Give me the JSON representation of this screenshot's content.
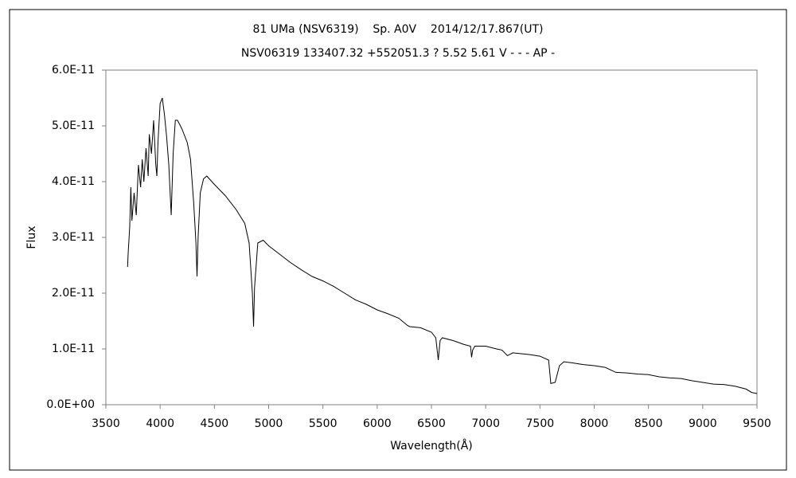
{
  "chart_data": {
    "type": "line",
    "title": "81 UMa (NSV6319)    Sp. A0V    2014/12/17.867(UT)",
    "subtitle": "NSV06319 133407.32 +552051.3 ? 5.52 5.61 V - - - AP -",
    "x_label": "Wavelength(Å)",
    "y_label": "Flux",
    "xlim": [
      3500,
      9500
    ],
    "xticks": [
      3500,
      4000,
      4500,
      5000,
      5500,
      6000,
      6500,
      7000,
      7500,
      8000,
      8500,
      9000,
      9500
    ],
    "ylim": [
      0,
      6e-11
    ],
    "yticks": [
      {
        "value": 0,
        "label": "0.0E+00"
      },
      {
        "value": 1e-11,
        "label": "1.0E-11"
      },
      {
        "value": 2e-11,
        "label": "2.0E-11"
      },
      {
        "value": 3e-11,
        "label": "3.0E-11"
      },
      {
        "value": 4e-11,
        "label": "4.0E-11"
      },
      {
        "value": 5e-11,
        "label": "5.0E-11"
      },
      {
        "value": 6e-11,
        "label": "6.0E-11"
      }
    ],
    "grid": false,
    "series": [
      {
        "color": "#000000",
        "x": [
          3700,
          3705,
          3720,
          3730,
          3740,
          3760,
          3780,
          3800,
          3820,
          3835,
          3850,
          3870,
          3890,
          3900,
          3920,
          3940,
          3960,
          3970,
          3980,
          4000,
          4020,
          4040,
          4060,
          4080,
          4102,
          4120,
          4140,
          4160,
          4200,
          4250,
          4280,
          4310,
          4330,
          4340,
          4350,
          4370,
          4400,
          4430,
          4500,
          4600,
          4700,
          4780,
          4820,
          4850,
          4861,
          4870,
          4900,
          4950,
          5000,
          5100,
          5200,
          5300,
          5400,
          5500,
          5600,
          5700,
          5800,
          5900,
          6000,
          6100,
          6200,
          6280,
          6300,
          6400,
          6500,
          6540,
          6563,
          6580,
          6600,
          6700,
          6800,
          6860,
          6870,
          6880,
          6900,
          7000,
          7100,
          7150,
          7200,
          7250,
          7300,
          7400,
          7500,
          7580,
          7600,
          7640,
          7680,
          7720,
          7800,
          7900,
          8000,
          8100,
          8200,
          8300,
          8400,
          8500,
          8600,
          8700,
          8800,
          8900,
          9000,
          9100,
          9200,
          9300,
          9400,
          9450,
          9500
        ],
        "values": [
          2.47e-11,
          2.7e-11,
          3.2e-11,
          3.9e-11,
          3.3e-11,
          3.8e-11,
          3.4e-11,
          4.3e-11,
          3.9e-11,
          4.4e-11,
          4e-11,
          4.6e-11,
          4.1e-11,
          4.85e-11,
          4.5e-11,
          5.1e-11,
          4.3e-11,
          4.1e-11,
          4.7e-11,
          5.4e-11,
          5.5e-11,
          5.2e-11,
          4.8e-11,
          4.3e-11,
          3.4e-11,
          4.5e-11,
          5.1e-11,
          5.1e-11,
          4.95e-11,
          4.7e-11,
          4.4e-11,
          3.6e-11,
          2.9e-11,
          2.3e-11,
          3e-11,
          3.8e-11,
          4.05e-11,
          4.1e-11,
          3.95e-11,
          3.75e-11,
          3.5e-11,
          3.25e-11,
          2.9e-11,
          2e-11,
          1.4e-11,
          2.1e-11,
          2.9e-11,
          2.95e-11,
          2.85e-11,
          2.7e-11,
          2.55e-11,
          2.42e-11,
          2.3e-11,
          2.22e-11,
          2.12e-11,
          2e-11,
          1.88e-11,
          1.8e-11,
          1.7e-11,
          1.63e-11,
          1.55e-11,
          1.42e-11,
          1.4e-11,
          1.38e-11,
          1.3e-11,
          1.2e-11,
          8e-12,
          1.15e-11,
          1.2e-11,
          1.15e-11,
          1.08e-11,
          1.05e-11,
          8.5e-12,
          9.8e-12,
          1.05e-11,
          1.05e-11,
          1e-11,
          9.8e-12,
          8.8e-12,
          9.3e-12,
          9.2e-12,
          9e-12,
          8.7e-12,
          8e-12,
          3.8e-12,
          4e-12,
          7e-12,
          7.7e-12,
          7.5e-12,
          7.2e-12,
          7e-12,
          6.7e-12,
          5.8e-12,
          5.7e-12,
          5.5e-12,
          5.4e-12,
          5e-12,
          4.8e-12,
          4.7e-12,
          4.3e-12,
          4e-12,
          3.7e-12,
          3.6e-12,
          3.3e-12,
          2.8e-12,
          2.2e-12,
          2e-12
        ]
      }
    ]
  }
}
